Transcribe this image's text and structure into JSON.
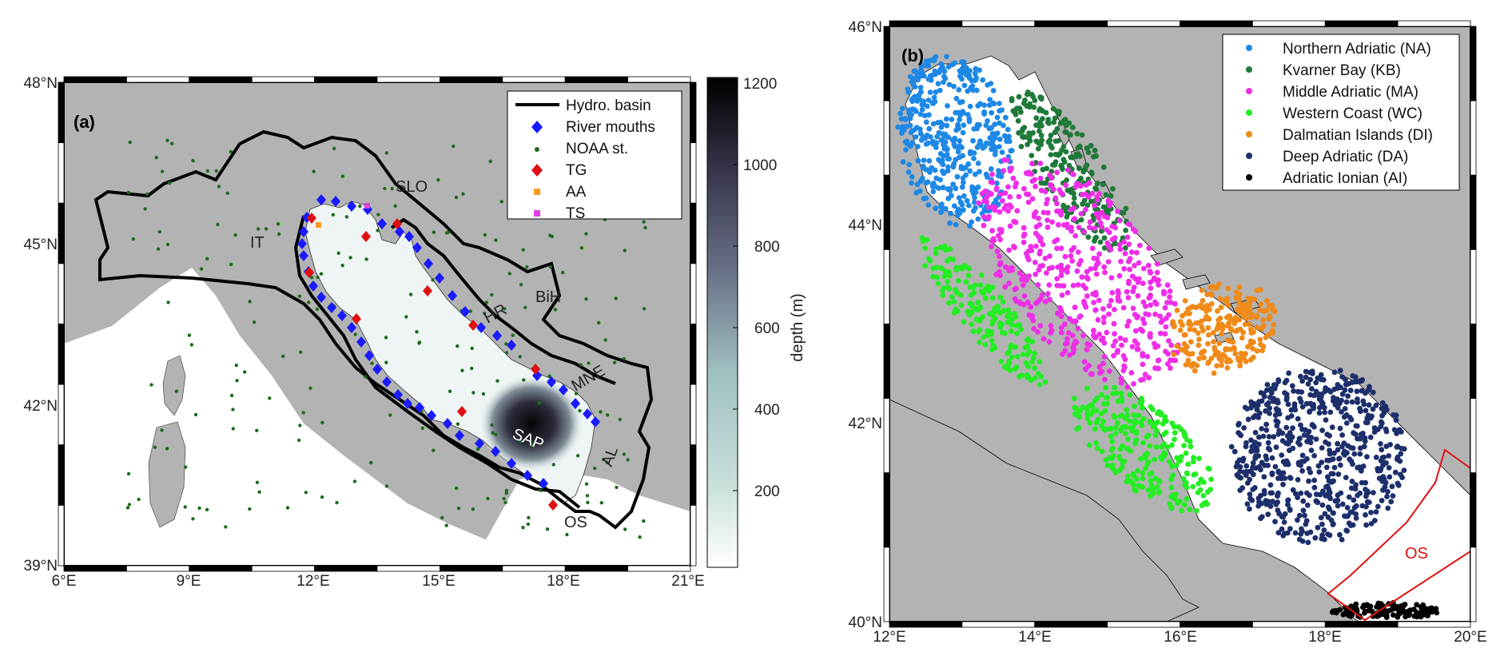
{
  "panel_a": {
    "label": "(a)",
    "lon_ticks": [
      "6°E",
      "9°E",
      "12°E",
      "15°E",
      "18°E",
      "21°E"
    ],
    "lat_ticks": [
      "39°N",
      "42°N",
      "45°N",
      "48°N"
    ],
    "legend": [
      {
        "name": "Hydro. basin",
        "symbol": "line",
        "color": "#000000"
      },
      {
        "name": "River mouths",
        "symbol": "diamond",
        "color": "#1a1aff"
      },
      {
        "name": "NOAA st.",
        "symbol": "dot",
        "color": "#1e6b1e"
      },
      {
        "name": "TG",
        "symbol": "diamond",
        "color": "#e01010"
      },
      {
        "name": "AA",
        "symbol": "square",
        "color": "#ff9a1f"
      },
      {
        "name": "TS",
        "symbol": "square",
        "color": "#e040e0"
      }
    ],
    "region_labels": [
      "SLO",
      "IT",
      "BiH",
      "HR",
      "MNE",
      "SAP",
      "AL",
      "OS"
    ],
    "colorbar": {
      "label": "depth (m)",
      "ticks": [
        "1200",
        "1000",
        "800",
        "600",
        "400",
        "200"
      ],
      "range": [
        0,
        1200
      ]
    }
  },
  "panel_b": {
    "label": "(b)",
    "lon_ticks": [
      "12°E",
      "14°E",
      "16°E",
      "18°E",
      "20°E"
    ],
    "lat_ticks": [
      "40°N",
      "42°N",
      "44°N",
      "46°N"
    ],
    "legend": [
      {
        "name": "Northern Adriatic (NA)",
        "color": "#1e88e5"
      },
      {
        "name": "Kvarner Bay (KB)",
        "color": "#1f7a3a"
      },
      {
        "name": "Middle Adriatic (MA)",
        "color": "#ee2ee8"
      },
      {
        "name": "Western Coast (WC)",
        "color": "#22ee22"
      },
      {
        "name": "Dalmatian Islands (DI)",
        "color": "#f08a18"
      },
      {
        "name": "Deep Adriatic (DA)",
        "color": "#1d2f6b"
      },
      {
        "name": "Adriatic Ionian (AI)",
        "color": "#000000"
      }
    ],
    "box_label": "OS"
  }
}
